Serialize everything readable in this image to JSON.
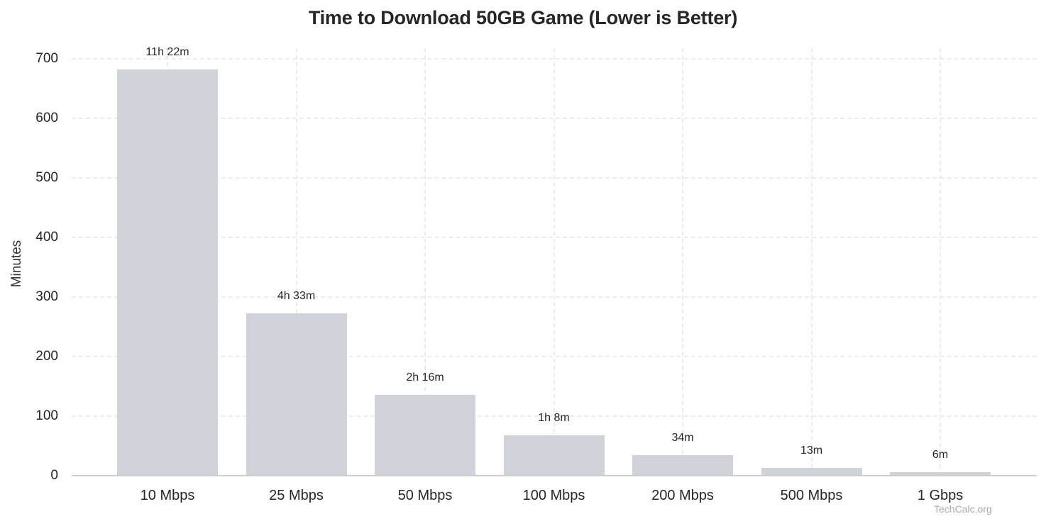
{
  "chart_data": {
    "type": "bar",
    "title": "Time to Download 50GB Game (Lower is Better)",
    "xlabel": "",
    "ylabel": "Minutes",
    "categories": [
      "10 Mbps",
      "25 Mbps",
      "50 Mbps",
      "100 Mbps",
      "200 Mbps",
      "500 Mbps",
      "1 Gbps"
    ],
    "values": [
      682,
      273,
      136,
      68,
      34,
      13,
      6
    ],
    "data_labels": [
      "11h 22m",
      "4h 33m",
      "2h 16m",
      "1h 8m",
      "34m",
      "13m",
      "6m"
    ],
    "ylim": [
      0,
      700
    ],
    "yticks": [
      0,
      100,
      200,
      300,
      400,
      500,
      600,
      700
    ],
    "grid": true,
    "bar_color": "#d0d3da",
    "legend": null,
    "annotations": [
      "TechCalc.org"
    ]
  },
  "watermark": "TechCalc.org"
}
